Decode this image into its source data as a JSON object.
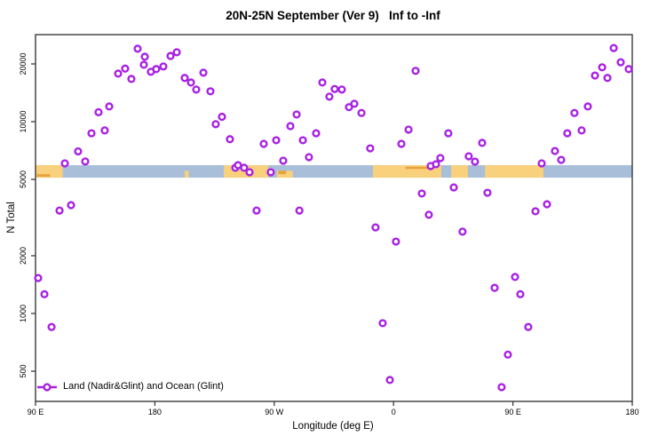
{
  "title": "20N-25N September (Ver 9)   Inf to -Inf",
  "legend": {
    "label": "Land (Nadir&Glint) and Ocean (Glint)"
  },
  "colors": {
    "point": "#A822E4",
    "ocean": "#A9BFD9",
    "land": "#F9D07C",
    "land_dark": "#E8A33C",
    "axis": "#3a3a3a",
    "text": "#000000"
  },
  "chart_data": {
    "type": "scatter",
    "title": "20N-25N September (Ver 9)   Inf to -Inf",
    "xlabel": "Longitude (deg E)",
    "ylabel": "N Total",
    "x_axis": {
      "range": [
        90,
        540
      ],
      "note": "longitude axis wraps: 90E to 180 to 90W to 0 to 90E to 180",
      "ticks": [
        {
          "lon": 90,
          "label": "90 E"
        },
        {
          "lon": 180,
          "label": "180"
        },
        {
          "lon": 270,
          "label": "90 W"
        },
        {
          "lon": 360,
          "label": "0"
        },
        {
          "lon": 450,
          "label": "90 E"
        },
        {
          "lon": 540,
          "label": "180"
        }
      ]
    },
    "y_axis": {
      "scale": "log",
      "range": [
        350,
        28000
      ],
      "ticks": [
        500,
        1000,
        2000,
        5000,
        10000,
        20000
      ]
    },
    "map_band": {
      "value_range": [
        5105,
        5930
      ],
      "ocean_extent": [
        90,
        540
      ],
      "land_segments": [
        {
          "lon": [
            90,
            110.5
          ],
          "height": "full"
        },
        {
          "lon": [
            202.5,
            205.5
          ],
          "height": "lower"
        },
        {
          "lon": [
            232,
            265.5
          ],
          "height": "full"
        },
        {
          "lon": [
            272,
            284
          ],
          "height": "lower"
        },
        {
          "lon": [
            344.5,
            396
          ],
          "height": "full"
        },
        {
          "lon": [
            403.5,
            416
          ],
          "height": "full"
        },
        {
          "lon": [
            429,
            473
          ],
          "height": "full"
        }
      ],
      "dark_details": [
        {
          "lon": [
            91,
            101
          ],
          "band_y": [
            0.72,
            0.93
          ]
        },
        {
          "lon": [
            273,
            279
          ],
          "band_y": [
            0.45,
            0.72
          ]
        },
        {
          "lon": [
            369,
            386
          ],
          "band_y": [
            0.12,
            0.3
          ]
        }
      ]
    },
    "series": [
      {
        "name": "Land (Nadir&Glint) and Ocean (Glint)",
        "points": [
          [
            92.0,
            1530
          ],
          [
            96.7,
            1260
          ],
          [
            102.1,
            850
          ],
          [
            108.1,
            3440
          ],
          [
            112.1,
            6060
          ],
          [
            116.8,
            3670
          ],
          [
            122.1,
            7000
          ],
          [
            127.5,
            6200
          ],
          [
            132.2,
            8700
          ],
          [
            137.5,
            11200
          ],
          [
            142.2,
            9000
          ],
          [
            145.6,
            12000
          ],
          [
            152.3,
            17800
          ],
          [
            157.6,
            18900
          ],
          [
            162.3,
            16700
          ],
          [
            167.0,
            24000
          ],
          [
            171.7,
            19800
          ],
          [
            172.4,
            21800
          ],
          [
            177.0,
            18200
          ],
          [
            181.0,
            18800
          ],
          [
            186.4,
            19400
          ],
          [
            191.8,
            22000
          ],
          [
            196.5,
            23000
          ],
          [
            202.5,
            16900
          ],
          [
            207.2,
            16000
          ],
          [
            211.2,
            14700
          ],
          [
            216.6,
            18000
          ],
          [
            221.9,
            14400
          ],
          [
            225.9,
            9700
          ],
          [
            230.6,
            10600
          ],
          [
            236.6,
            8100
          ],
          [
            240.7,
            5750
          ],
          [
            242.7,
            5930
          ],
          [
            247.3,
            5750
          ],
          [
            251.4,
            5450
          ],
          [
            256.7,
            3440
          ],
          [
            262.1,
            7660
          ],
          [
            267.4,
            5450
          ],
          [
            271.5,
            8000
          ],
          [
            276.8,
            6260
          ],
          [
            282.2,
            9480
          ],
          [
            286.9,
            10900
          ],
          [
            289.0,
            3440
          ],
          [
            291.6,
            8000
          ],
          [
            296.2,
            6530
          ],
          [
            301.6,
            8700
          ],
          [
            306.3,
            16000
          ],
          [
            311.6,
            13500
          ],
          [
            315.6,
            14800
          ],
          [
            321.0,
            14700
          ],
          [
            326.4,
            11900
          ],
          [
            330.4,
            12400
          ],
          [
            335.8,
            11100
          ],
          [
            342.4,
            7260
          ],
          [
            346.4,
            2810
          ],
          [
            351.8,
            890
          ],
          [
            357.2,
            450
          ],
          [
            361.8,
            2370
          ],
          [
            365.9,
            7660
          ],
          [
            371.3,
            9090
          ],
          [
            376.6,
            18400
          ],
          [
            381.3,
            4220
          ],
          [
            386.6,
            3270
          ],
          [
            388.0,
            5870
          ],
          [
            392.0,
            6000
          ],
          [
            395.3,
            6460
          ],
          [
            401.3,
            8700
          ],
          [
            405.4,
            4540
          ],
          [
            412.0,
            2670
          ],
          [
            416.7,
            6600
          ],
          [
            421.4,
            6190
          ],
          [
            426.8,
            7750
          ],
          [
            430.8,
            4260
          ],
          [
            436.2,
            1360
          ],
          [
            441.5,
            413
          ],
          [
            446.2,
            610
          ],
          [
            451.6,
            1550
          ],
          [
            455.6,
            1260
          ],
          [
            461.6,
            850
          ],
          [
            467.0,
            3410
          ],
          [
            471.7,
            6060
          ],
          [
            475.7,
            3710
          ],
          [
            481.7,
            7030
          ],
          [
            486.4,
            6320
          ],
          [
            491.0,
            8700
          ],
          [
            496.4,
            11100
          ],
          [
            501.8,
            9000
          ],
          [
            506.5,
            12000
          ],
          [
            511.9,
            17400
          ],
          [
            517.3,
            19200
          ],
          [
            521.3,
            16900
          ],
          [
            526.0,
            24200
          ],
          [
            531.3,
            20400
          ],
          [
            537.3,
            18800
          ]
        ]
      }
    ]
  }
}
